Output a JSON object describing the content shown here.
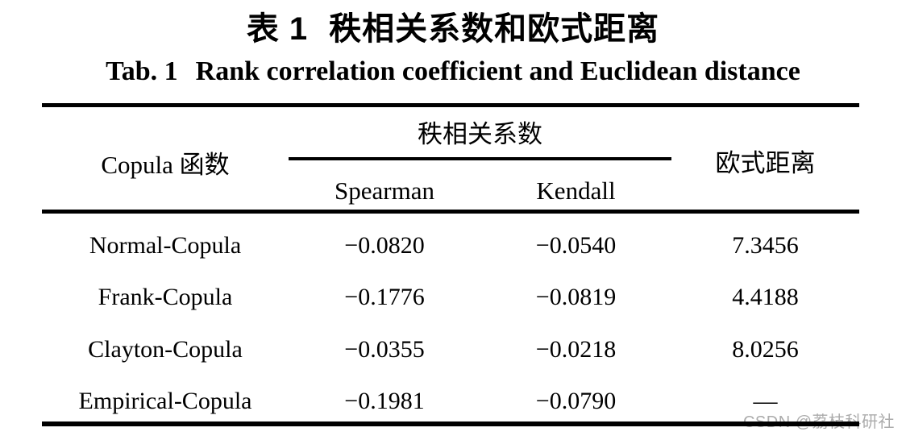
{
  "title": {
    "zh_label": "表 1",
    "zh_text": "秩相关系数和欧式距离",
    "en_label": "Tab. 1",
    "en_text": "Rank correlation coefficient and Euclidean distance"
  },
  "chart_data": {
    "type": "table",
    "title_zh": "表 1 秩相关系数和欧式距离",
    "title_en": "Tab. 1 Rank correlation coefficient and Euclidean distance",
    "columns": [
      "Copula 函数",
      "Spearman",
      "Kendall",
      "欧式距离"
    ],
    "column_groups": [
      {
        "label": "秩相关系数",
        "spans": [
          "Spearman",
          "Kendall"
        ]
      }
    ],
    "rows": [
      [
        "Normal-Copula",
        -0.082,
        -0.054,
        7.3456
      ],
      [
        "Frank-Copula",
        -0.1776,
        -0.0819,
        4.4188
      ],
      [
        "Clayton-Copula",
        -0.0355,
        -0.0218,
        8.0256
      ],
      [
        "Empirical-Copula",
        -0.1981,
        -0.079,
        null
      ]
    ]
  },
  "table": {
    "col1_header": "Copula 函数",
    "group_header": "秩相关系数",
    "sub_header_spearman": "Spearman",
    "sub_header_kendall": "Kendall",
    "col4_header": "欧式距离",
    "rows": [
      {
        "name": "Normal-Copula",
        "spearman": "−0.0820",
        "kendall": "−0.0540",
        "distance": "7.3456"
      },
      {
        "name": "Frank-Copula",
        "spearman": "−0.1776",
        "kendall": "−0.0819",
        "distance": "4.4188"
      },
      {
        "name": "Clayton-Copula",
        "spearman": "−0.0355",
        "kendall": "−0.0218",
        "distance": "8.0256"
      },
      {
        "name": "Empirical-Copula",
        "spearman": "−0.1981",
        "kendall": "−0.0790",
        "distance": "—"
      }
    ]
  },
  "watermark": {
    "text": "CSDN @荔枝科研社",
    "color": "#ababab"
  },
  "colors": {
    "text": "#000000",
    "rule": "#000000",
    "background": "#ffffff"
  }
}
